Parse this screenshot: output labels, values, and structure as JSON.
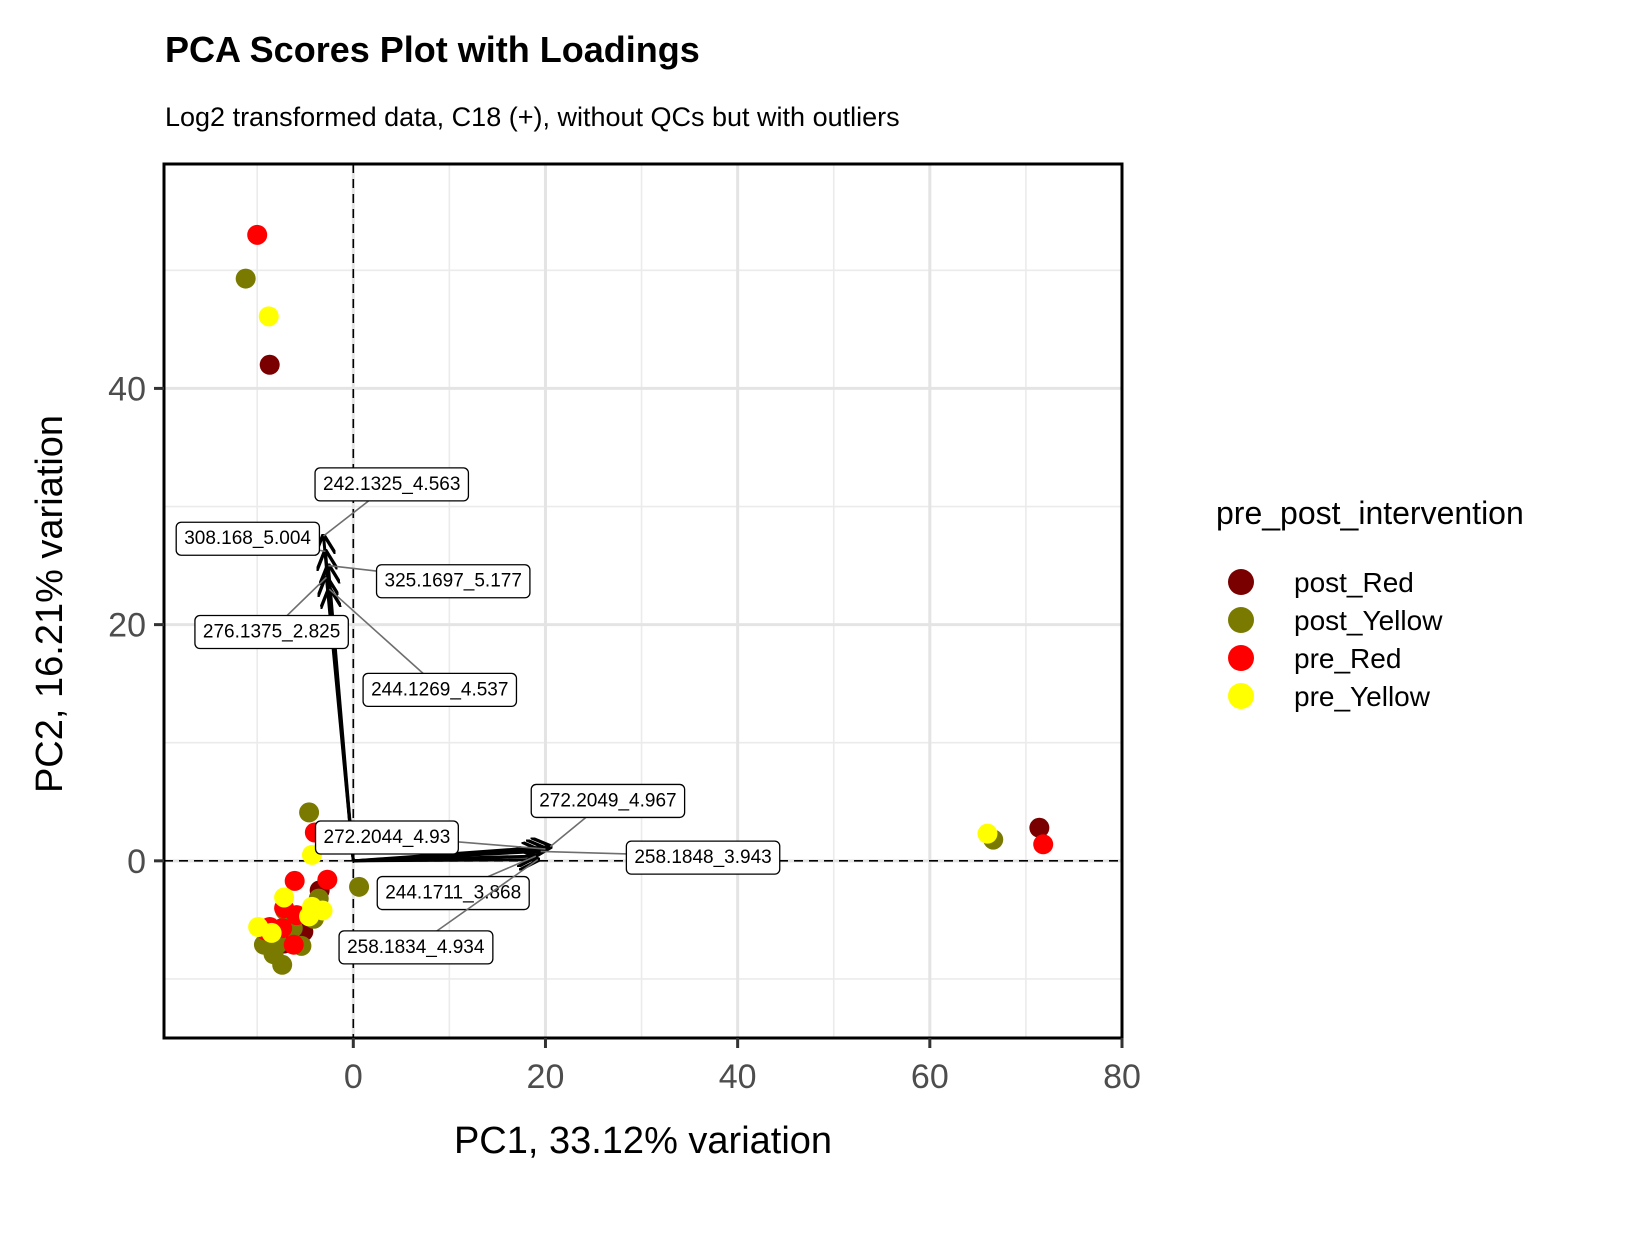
{
  "chart_data": {
    "type": "scatter",
    "title": "PCA Scores Plot with Loadings",
    "subtitle": "Log2 transformed data, C18 (+), without QCs but with outliers",
    "xlabel": "PC1, 33.12% variation",
    "ylabel": "PC2, 16.21% variation",
    "xlim": [
      -19.7,
      80
    ],
    "ylim": [
      -15,
      59
    ],
    "xticks": [
      0,
      20,
      40,
      60,
      80
    ],
    "yticks": [
      0,
      20,
      40
    ],
    "grid": true,
    "reference_lines": {
      "x": 0,
      "y": 0,
      "style": "dashed"
    },
    "legend": {
      "title": "pre_post_intervention",
      "placement": "right",
      "entries": [
        {
          "name": "post_Red",
          "color": "#7a0000"
        },
        {
          "name": "post_Yellow",
          "color": "#7a7a00"
        },
        {
          "name": "pre_Red",
          "color": "#ff0000"
        },
        {
          "name": "pre_Yellow",
          "color": "#ffff00"
        }
      ]
    },
    "series": [
      {
        "name": "post_Red",
        "color": "#7a0000",
        "points": [
          [
            -8.7,
            42.0
          ],
          [
            71.4,
            2.8
          ],
          [
            -3.5,
            -2.5
          ],
          [
            -5.8,
            -5.0
          ],
          [
            -5.2,
            -6.0
          ],
          [
            -6.5,
            -6.5
          ],
          [
            -7.2,
            -7.0
          ]
        ]
      },
      {
        "name": "post_Yellow",
        "color": "#7a7a00",
        "points": [
          [
            -11.2,
            49.3
          ],
          [
            66.6,
            1.8
          ],
          [
            -4.6,
            4.1
          ],
          [
            0.6,
            -2.2
          ],
          [
            7.2,
            -7.7
          ],
          [
            -4.1,
            -4.9
          ],
          [
            -7.1,
            -4.2
          ],
          [
            -9.3,
            -7.1
          ],
          [
            -8.3,
            -7.9
          ],
          [
            -7.4,
            -8.8
          ],
          [
            -5.4,
            -7.2
          ],
          [
            -6.3,
            -5.7
          ],
          [
            -3.6,
            -3.2
          ],
          [
            -7.8,
            -7.0
          ]
        ]
      },
      {
        "name": "pre_Red",
        "color": "#ff0000",
        "points": [
          [
            -10.0,
            53.0
          ],
          [
            71.8,
            1.4
          ],
          [
            -4.0,
            2.4
          ],
          [
            -6.1,
            -1.7
          ],
          [
            -2.7,
            -1.6
          ],
          [
            -7.2,
            -4.0
          ],
          [
            -8.7,
            -5.6
          ],
          [
            -6.2,
            -7.1
          ],
          [
            -9.1,
            -5.9
          ],
          [
            -7.4,
            -5.7
          ],
          [
            -5.9,
            -4.6
          ]
        ]
      },
      {
        "name": "pre_Yellow",
        "color": "#ffff00",
        "points": [
          [
            -8.8,
            46.1
          ],
          [
            66.0,
            2.3
          ],
          [
            -4.3,
            0.5
          ],
          [
            -7.2,
            -3.1
          ],
          [
            -3.2,
            -4.2
          ],
          [
            -9.9,
            -5.6
          ],
          [
            -4.3,
            -3.9
          ],
          [
            -8.5,
            -6.1
          ],
          [
            -4.6,
            -4.7
          ]
        ]
      }
    ],
    "loadings": [
      {
        "label": "242.1325_4.563",
        "x": -3.1,
        "y": 27.5,
        "label_x": 4.0,
        "label_y": 32.0
      },
      {
        "label": "308.168_5.004",
        "x": -2.9,
        "y": 26.2,
        "label_x": -11.0,
        "label_y": 27.4
      },
      {
        "label": "325.1697_5.177",
        "x": -2.6,
        "y": 25.0,
        "label_x": 10.4,
        "label_y": 23.8
      },
      {
        "label": "276.1375_2.825",
        "x": -2.8,
        "y": 24.0,
        "label_x": -8.5,
        "label_y": 19.5
      },
      {
        "label": "244.1269_4.537",
        "x": -2.5,
        "y": 23.0,
        "label_x": 9.0,
        "label_y": 14.6
      },
      {
        "label": "272.2049_4.967",
        "x": 20.5,
        "y": 1.2,
        "label_x": 26.5,
        "label_y": 5.2
      },
      {
        "label": "272.2044_4.93",
        "x": 20.0,
        "y": 1.0,
        "label_x": 3.5,
        "label_y": 2.1
      },
      {
        "label": "258.1848_3.943",
        "x": 19.5,
        "y": 0.8,
        "label_x": 36.4,
        "label_y": 0.4
      },
      {
        "label": "244.1711_3.868",
        "x": 19.0,
        "y": 0.4,
        "label_x": 10.4,
        "label_y": -2.6
      },
      {
        "label": "258.1834_4.934",
        "x": 19.2,
        "y": 0.1,
        "label_x": 6.5,
        "label_y": -7.2
      }
    ]
  }
}
